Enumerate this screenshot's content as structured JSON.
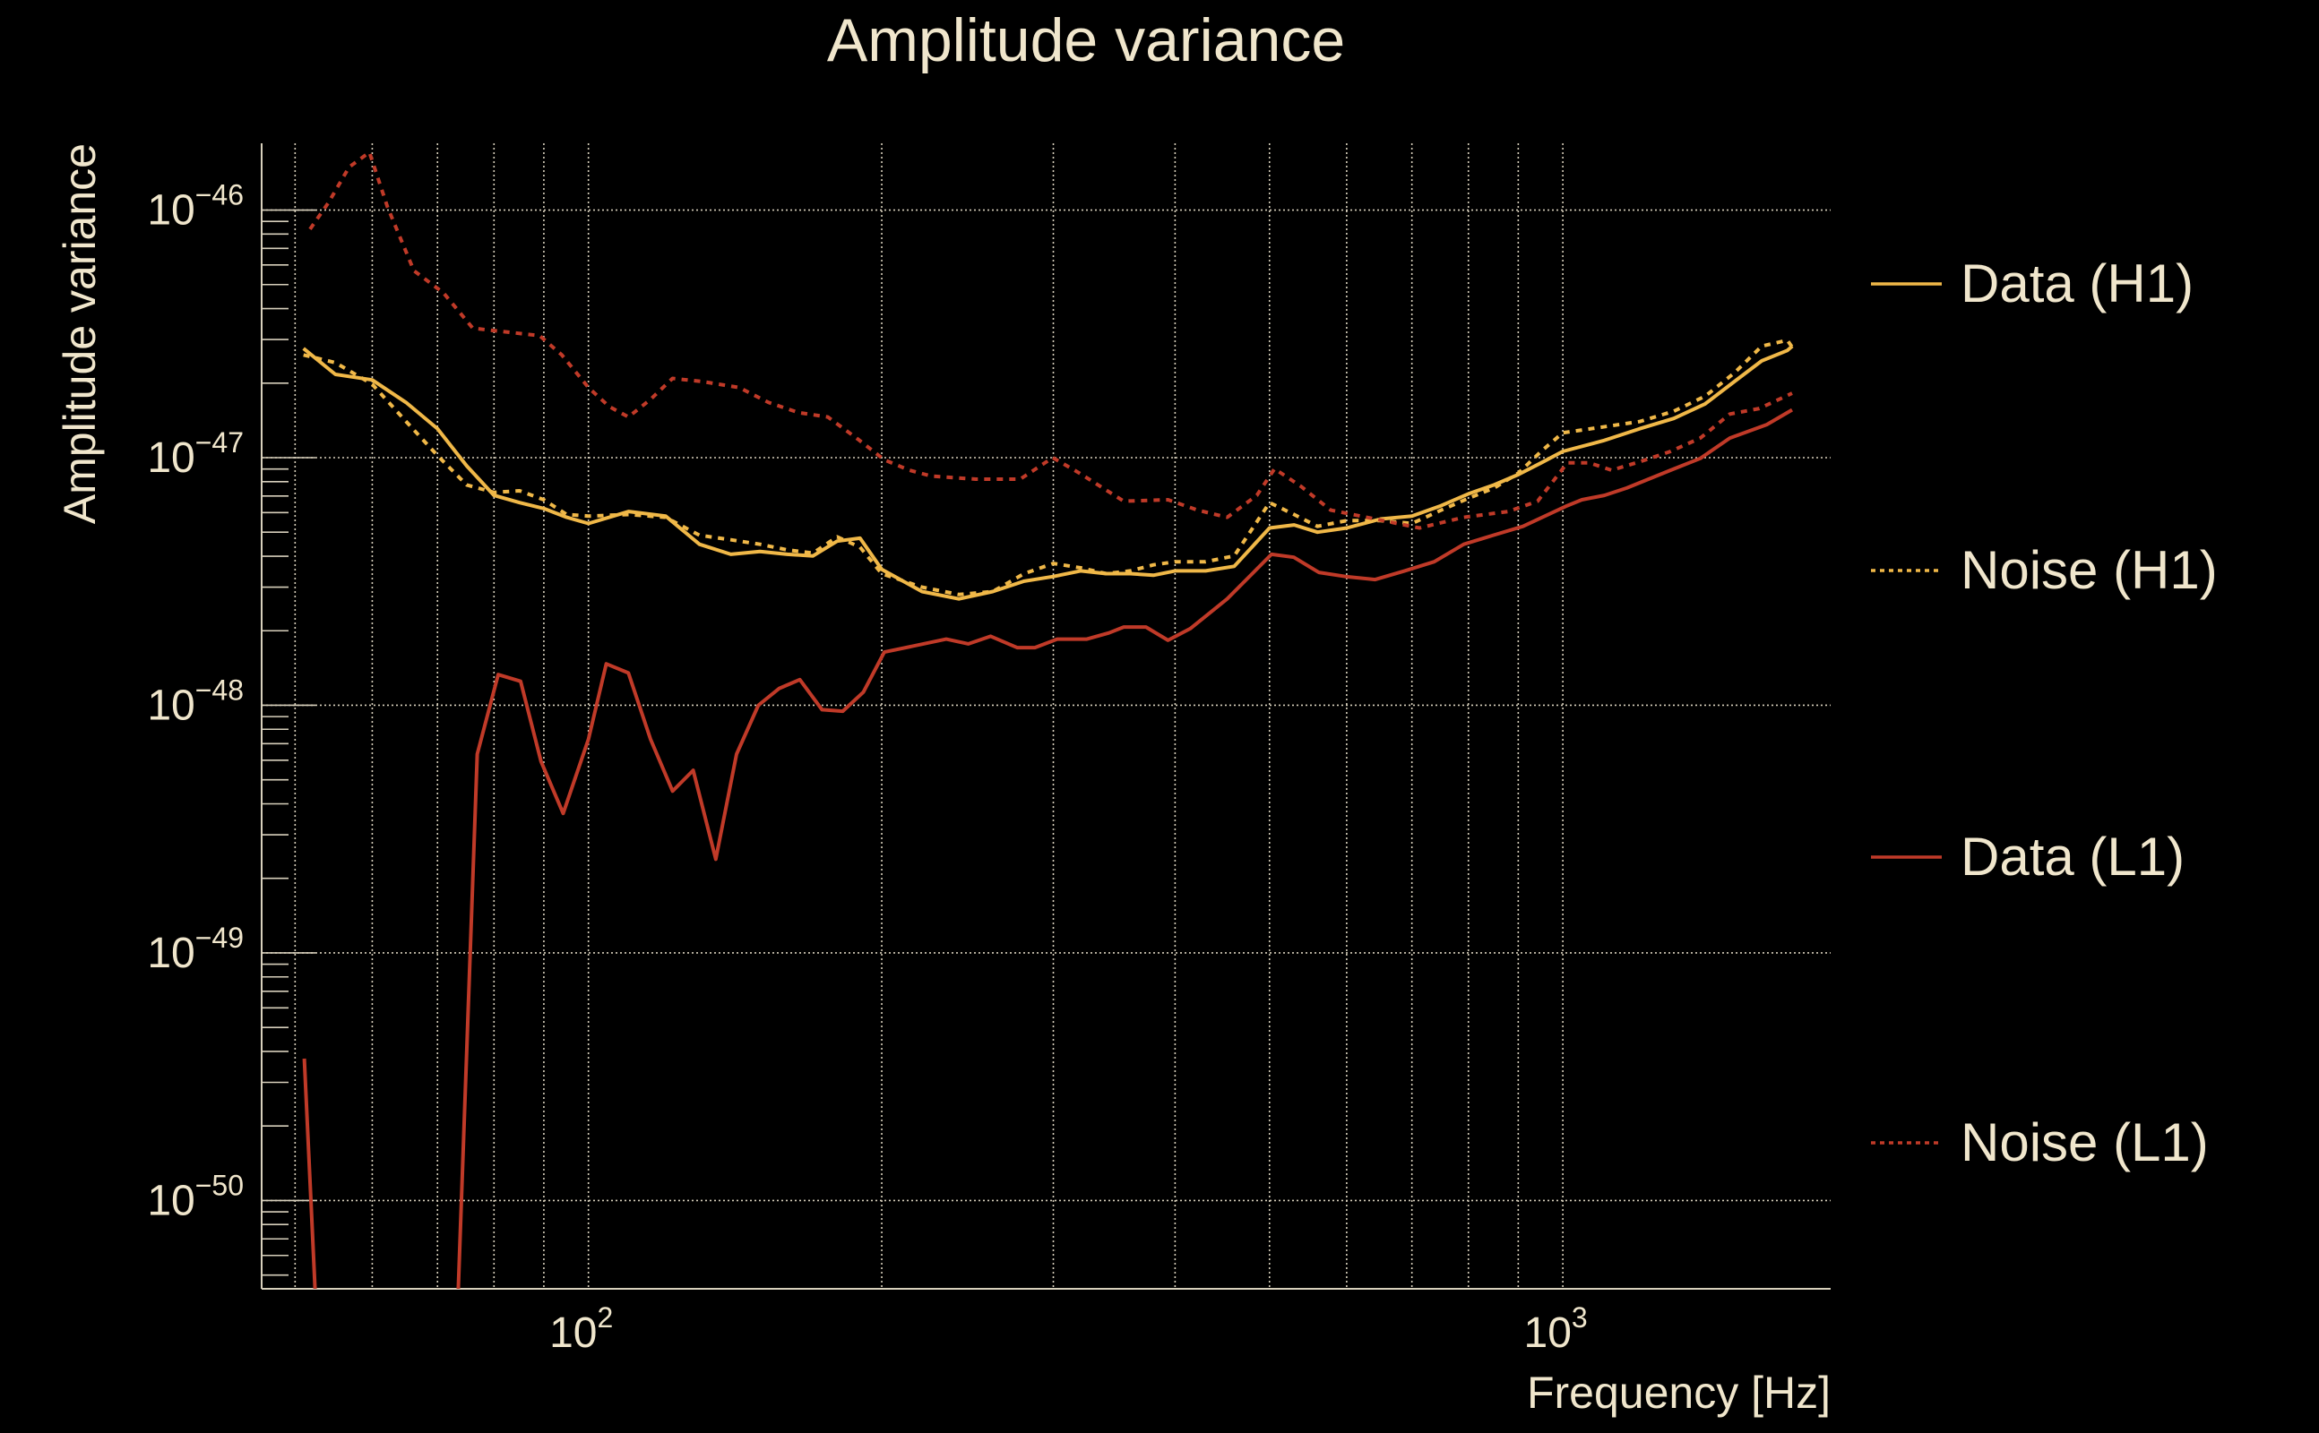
{
  "chart_data": {
    "type": "line",
    "title": "Amplitude variance",
    "xlabel": "Frequency [Hz]",
    "ylabel": "Amplitude variance",
    "xscale": "log",
    "yscale": "log",
    "xlim": [
      46.2,
      1883
    ],
    "ylim": [
      4.4e-51,
      1.86e-46
    ],
    "grid": true,
    "legend_placement": "right-outside",
    "background": "#000000",
    "text_color": "#f0e6cc",
    "x_ticks": [
      {
        "base": "10",
        "exp": "2",
        "value": 100
      },
      {
        "base": "10",
        "exp": "3",
        "value": 1000
      }
    ],
    "y_ticks": [
      {
        "base": "10",
        "exp": "−46",
        "value": 1e-46
      },
      {
        "base": "10",
        "exp": "−47",
        "value": 1e-47
      },
      {
        "base": "10",
        "exp": "−48",
        "value": 1e-48
      },
      {
        "base": "10",
        "exp": "−49",
        "value": 1e-49
      },
      {
        "base": "10",
        "exp": "−50",
        "value": 1e-50
      }
    ],
    "series": [
      {
        "name": "Data (H1)",
        "color": "#f0b848",
        "style": "solid",
        "x": [
          51,
          55,
          60,
          65,
          70,
          75,
          80,
          85,
          90,
          95,
          100,
          110,
          120,
          130,
          140,
          150,
          160,
          170,
          180,
          190,
          200,
          220,
          240,
          260,
          280,
          300,
          320,
          340,
          360,
          380,
          400,
          430,
          460,
          500,
          530,
          560,
          600,
          650,
          700,
          750,
          800,
          850,
          900,
          950,
          1000,
          1100,
          1200,
          1300,
          1400,
          1500,
          1600,
          1700,
          1720
        ],
        "y": [
          2.76e-47,
          2.17e-47,
          2.06e-47,
          1.67e-47,
          1.31e-47,
          9.27e-48,
          7.04e-48,
          6.58e-48,
          6.23e-48,
          5.74e-48,
          5.42e-48,
          6.06e-48,
          5.81e-48,
          4.47e-48,
          4.07e-48,
          4.18e-48,
          4.07e-48,
          4.01e-48,
          4.6e-48,
          4.73e-48,
          3.54e-48,
          2.88e-48,
          2.69e-48,
          2.88e-48,
          3.17e-48,
          3.31e-48,
          3.49e-48,
          3.4e-48,
          3.4e-48,
          3.35e-48,
          3.49e-48,
          3.49e-48,
          3.64e-48,
          5.2e-48,
          5.35e-48,
          5e-48,
          5.2e-48,
          5.65e-48,
          5.81e-48,
          6.4e-48,
          7.14e-48,
          7.76e-48,
          8.54e-48,
          9.53e-48,
          1.06e-47,
          1.17e-47,
          1.31e-47,
          1.44e-47,
          1.65e-47,
          2.03e-47,
          2.46e-47,
          2.71e-47,
          2.82e-47
        ]
      },
      {
        "name": "Noise (H1)",
        "color": "#f0b848",
        "style": "dotted",
        "x": [
          51,
          55,
          60,
          65,
          70,
          75,
          80,
          85,
          90,
          95,
          100,
          110,
          120,
          130,
          140,
          150,
          160,
          170,
          180,
          190,
          200,
          220,
          240,
          260,
          280,
          300,
          320,
          340,
          360,
          380,
          400,
          430,
          460,
          500,
          530,
          560,
          600,
          650,
          700,
          750,
          800,
          850,
          900,
          950,
          1000,
          1100,
          1200,
          1300,
          1400,
          1500,
          1600,
          1700,
          1720
        ],
        "y": [
          2.6e-47,
          2.42e-47,
          1.98e-47,
          1.4e-47,
          1.02e-47,
          7.76e-48,
          7.24e-48,
          7.35e-48,
          6.76e-48,
          5.89e-48,
          5.81e-48,
          5.89e-48,
          5.74e-48,
          4.86e-48,
          4.66e-48,
          4.47e-48,
          4.24e-48,
          4.12e-48,
          4.79e-48,
          4.35e-48,
          3.4e-48,
          3e-48,
          2.8e-48,
          2.88e-48,
          3.4e-48,
          3.74e-48,
          3.59e-48,
          3.4e-48,
          3.49e-48,
          3.69e-48,
          3.8e-48,
          3.8e-48,
          4.01e-48,
          6.58e-48,
          5.89e-48,
          5.28e-48,
          5.57e-48,
          5.57e-48,
          5.42e-48,
          6.14e-48,
          6.85e-48,
          7.54e-48,
          8.66e-48,
          1.06e-47,
          1.26e-47,
          1.33e-47,
          1.4e-47,
          1.54e-47,
          1.77e-47,
          2.2e-47,
          2.82e-47,
          2.98e-47,
          2.79e-47
        ]
      },
      {
        "name": "Data (L1)",
        "color": "#c03a28",
        "style": "solid",
        "x": [
          51.1,
          52.9,
          73.0,
          76.9,
          80.8,
          85.2,
          89.4,
          94.2,
          100,
          104.3,
          109.9,
          115.8,
          122.0,
          128.1,
          135.1,
          141.9,
          149.4,
          157.0,
          164.8,
          173.7,
          182.4,
          191.5,
          201.2,
          232.9,
          245.5,
          258.7,
          275.4,
          287.2,
          302.7,
          324.7,
          342.1,
          354.3,
          373.4,
          393.4,
          414.6,
          452.4,
          502.4,
          529.6,
          561.8,
          598.4,
          641.8,
          688.1,
          737.9,
          791.3,
          848.5,
          910.0,
          1010.6,
          1046,
          1103,
          1163,
          1290,
          1384,
          1484,
          1619,
          1719
        ],
        "y": [
          3.74e-50,
          2e-51,
          2e-51,
          6.35e-49,
          1.33e-48,
          1.25e-48,
          5.93e-49,
          3.66e-49,
          7.29e-49,
          1.47e-48,
          1.35e-48,
          7.29e-49,
          4.5e-49,
          5.46e-49,
          2.39e-49,
          6.35e-49,
          1e-48,
          1.17e-48,
          1.27e-48,
          9.6e-49,
          9.46e-49,
          1.13e-48,
          1.64e-48,
          1.85e-48,
          1.77e-48,
          1.9e-48,
          1.71e-48,
          1.71e-48,
          1.85e-48,
          1.85e-48,
          1.96e-48,
          2.07e-48,
          2.07e-48,
          1.83e-48,
          2.04e-48,
          2.69e-48,
          4.07e-48,
          3.96e-48,
          3.44e-48,
          3.31e-48,
          3.22e-48,
          3.49e-48,
          3.8e-48,
          4.47e-48,
          4.86e-48,
          5.28e-48,
          6.4e-48,
          6.76e-48,
          7.04e-48,
          7.54e-48,
          8.9e-48,
          9.93e-48,
          1.2e-47,
          1.36e-47,
          1.56e-47
        ]
      },
      {
        "name": "Noise (L1)",
        "color": "#c03a28",
        "style": "dotted",
        "x": [
          51.8,
          54.1,
          56.8,
          59.6,
          62.2,
          66.2,
          71.0,
          76.1,
          81.1,
          89.1,
          93.9,
          100,
          105.0,
          109.9,
          115.8,
          122.0,
          130.9,
          142.8,
          153.1,
          164.3,
          176.1,
          188.9,
          201.2,
          213.5,
          224.9,
          249.8,
          277.4,
          299.6,
          319.1,
          354.3,
          393.4,
          421.9,
          452.4,
          485.2,
          506.0,
          538.8,
          577.9,
          641.8,
          712.6,
          791.3,
          878.9,
          942.3,
          1010.6,
          1065,
          1122,
          1203,
          1290,
          1384,
          1484,
          1591,
          1719
        ],
        "y": [
          8.37e-47,
          1.07e-46,
          1.49e-46,
          1.71e-46,
          1.03e-46,
          5.69e-47,
          4.63e-47,
          3.33e-47,
          3.24e-47,
          3.11e-47,
          2.6e-47,
          1.92e-47,
          1.61e-47,
          1.46e-47,
          1.72e-47,
          2.09e-47,
          2.03e-47,
          1.92e-47,
          1.67e-47,
          1.52e-47,
          1.46e-47,
          1.19e-47,
          9.8e-48,
          8.9e-48,
          8.42e-48,
          8.19e-48,
          8.19e-48,
          1e-47,
          8.66e-48,
          6.67e-48,
          6.76e-48,
          6.14e-48,
          5.74e-48,
          7.04e-48,
          9.02e-48,
          7.65e-48,
          6.14e-48,
          5.65e-48,
          5.2e-48,
          5.74e-48,
          6.06e-48,
          6.67e-48,
          9.53e-48,
          9.53e-48,
          8.9e-48,
          9.66e-48,
          1.06e-47,
          1.2e-47,
          1.5e-47,
          1.58e-47,
          1.82e-47
        ]
      }
    ]
  }
}
